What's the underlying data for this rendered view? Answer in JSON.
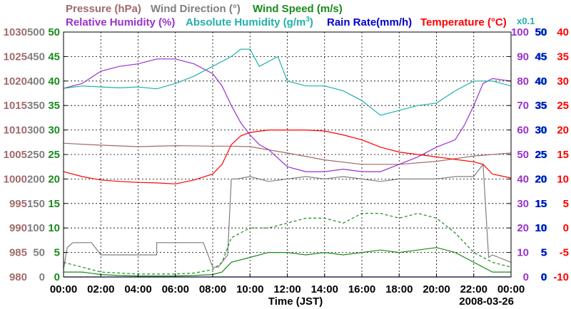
{
  "chart_data": {
    "type": "line",
    "xlabel": "Time (JST)",
    "date_label": "2008-03-26",
    "x_ticks": [
      "00:00",
      "02:00",
      "04:00",
      "06:00",
      "08:00",
      "10:00",
      "12:00",
      "14:00",
      "16:00",
      "18:00",
      "20:00",
      "22:00",
      "00:00"
    ],
    "x_range_hours": [
      0,
      24
    ],
    "grid": true,
    "left_axes": [
      {
        "name": "Pressure (hPa)",
        "color": "#a26a6a",
        "range": [
          980,
          1030
        ],
        "ticks": [
          "980",
          "985",
          "990",
          "995",
          "1000",
          "1005",
          "1010",
          "1015",
          "1020",
          "1025",
          "1030"
        ]
      },
      {
        "name": "Wind Direction (°)",
        "color": "#7f7f7f",
        "range": [
          0,
          500
        ],
        "ticks": [
          "0",
          "50",
          "100",
          "150",
          "200",
          "250",
          "300",
          "350",
          "400",
          "450",
          "500"
        ]
      },
      {
        "name": "Wind Speed (m/s)",
        "color": "#1a8a1a",
        "range": [
          0,
          50
        ],
        "ticks": [
          "0",
          "5",
          "10",
          "15",
          "20",
          "25",
          "30",
          "35",
          "40",
          "45",
          "50"
        ]
      }
    ],
    "right_axes": [
      {
        "name": "Relative Humidity (%)",
        "color": "#9932cc",
        "range": [
          0,
          100
        ],
        "ticks": [
          "0",
          "10",
          "20",
          "30",
          "40",
          "50",
          "60",
          "70",
          "80",
          "90",
          "100"
        ]
      },
      {
        "name": "Absolute Humidity (g/m3)",
        "display_unit_prefix": "Absolute Humidity (g/m",
        "display_unit_sup": "3",
        "display_unit_suffix": ")",
        "scale_note": "x0.1",
        "color": "#20b2aa",
        "range": [
          0,
          50
        ],
        "ticks": [
          "0",
          "5",
          "10",
          "15",
          "20",
          "25",
          "30",
          "35",
          "40",
          "45",
          "50"
        ]
      },
      {
        "name": "Rain Rate(mm/h)",
        "color": "#0000cc",
        "range": [
          0,
          50
        ],
        "ticks": [
          "0",
          "5",
          "10",
          "15",
          "20",
          "25",
          "30",
          "35",
          "40",
          "45",
          "50"
        ]
      },
      {
        "name": "Temperature (°C)",
        "color": "#ff0000",
        "range": [
          -10,
          40
        ],
        "ticks": [
          "-10",
          "-5",
          "0",
          "5",
          "10",
          "15",
          "20",
          "25",
          "30",
          "35",
          "40"
        ]
      }
    ],
    "series": [
      {
        "name": "Pressure (hPa)",
        "axis": "Pressure (hPa)",
        "color": "#a26a6a",
        "style": "solid",
        "x": [
          0,
          2,
          4,
          6,
          8,
          9,
          10,
          12,
          14,
          16,
          18,
          20,
          22,
          24
        ],
        "y": [
          1007.3,
          1006.9,
          1006.6,
          1006.8,
          1006.7,
          1006.7,
          1006.6,
          1005.3,
          1003.9,
          1003.0,
          1003.0,
          1003.6,
          1004.7,
          1005.3
        ]
      },
      {
        "name": "Wind Direction (°)",
        "axis": "Wind Direction (°)",
        "color": "#7f7f7f",
        "style": "solid",
        "x": [
          0,
          0.2,
          0.5,
          1,
          1.5,
          2,
          3,
          4,
          5,
          5,
          6,
          7,
          7.5,
          8,
          8.3,
          8.8,
          9,
          9.3,
          10,
          11,
          12,
          13,
          14,
          15,
          16,
          17,
          18,
          19,
          20,
          21,
          22,
          22.5,
          22.8,
          23,
          24
        ],
        "y": [
          15,
          60,
          70,
          70,
          70,
          45,
          45,
          45,
          45,
          70,
          70,
          70,
          70,
          20,
          20,
          45,
          200,
          200,
          205,
          195,
          200,
          205,
          200,
          205,
          200,
          195,
          200,
          200,
          200,
          205,
          205,
          230,
          40,
          45,
          30
        ]
      },
      {
        "name": "Wind Speed (m/s) avg",
        "axis": "Wind Speed (m/s)",
        "color": "#1a8a1a",
        "style": "solid",
        "x": [
          0,
          1,
          2,
          3,
          4,
          5,
          6,
          7,
          8,
          8.5,
          9,
          10,
          11,
          12,
          13,
          14,
          15,
          16,
          17,
          18,
          19,
          20,
          21,
          22,
          22.5,
          23,
          24
        ],
        "y": [
          1,
          1,
          0.5,
          0.3,
          0.2,
          0.2,
          0.2,
          0.3,
          0.5,
          1,
          3,
          4,
          5,
          5,
          4.5,
          5,
          4.5,
          5,
          5.5,
          5,
          5.5,
          6,
          5,
          3,
          2,
          1,
          1
        ]
      },
      {
        "name": "Wind Speed (m/s) gust",
        "axis": "Wind Speed (m/s)",
        "color": "#1a8a1a",
        "style": "dashed",
        "x": [
          0,
          1,
          2,
          3,
          4,
          5,
          6,
          7,
          8,
          8.5,
          9,
          10,
          11,
          12,
          13,
          14,
          15,
          16,
          17,
          18,
          19,
          20,
          21,
          22,
          22.5,
          23,
          24
        ],
        "y": [
          3,
          2,
          1,
          0.8,
          0.6,
          0.6,
          0.6,
          0.8,
          1.5,
          3,
          8,
          10,
          10,
          11,
          12,
          12,
          11,
          13,
          13,
          12,
          13,
          12,
          9,
          5,
          4,
          3,
          2
        ]
      },
      {
        "name": "Relative Humidity (%)",
        "axis": "Relative Humidity (%)",
        "color": "#9932cc",
        "style": "solid",
        "x": [
          0,
          1,
          2,
          3,
          4,
          5,
          6,
          7,
          8,
          8.5,
          9,
          9.5,
          10,
          10.5,
          11,
          12,
          13,
          14,
          15,
          16,
          17,
          18,
          19,
          20,
          21,
          21.5,
          22,
          22.5,
          23,
          24
        ],
        "y": [
          77,
          79,
          84,
          86,
          87,
          89,
          89,
          87,
          83,
          78,
          70,
          63,
          58,
          54,
          52,
          45,
          43,
          43,
          44,
          43,
          43,
          46,
          49,
          53,
          56,
          62,
          70,
          79,
          81,
          80
        ]
      },
      {
        "name": "Absolute Humidity (g/m3)",
        "axis": "Absolute Humidity (g/m3)",
        "color": "#20b2aa",
        "style": "solid",
        "x": [
          0,
          1,
          2,
          3,
          4,
          5,
          6,
          7,
          8,
          9,
          9.5,
          10,
          10.5,
          11,
          11.5,
          12,
          13,
          14,
          15,
          16,
          17,
          18,
          19,
          20,
          21,
          22,
          23,
          24
        ],
        "y": [
          38.5,
          39.0,
          38.8,
          38.6,
          38.8,
          38.4,
          39.5,
          41.0,
          43.0,
          45.0,
          46.5,
          46.5,
          43.0,
          44.0,
          45.0,
          40.0,
          39.0,
          39.0,
          38.0,
          36.0,
          33.0,
          34.0,
          35.0,
          35.5,
          38.0,
          40.0,
          40.0,
          39.0
        ]
      },
      {
        "name": "Rain Rate(mm/h)",
        "axis": "Rain Rate(mm/h)",
        "color": "#0000cc",
        "style": "solid",
        "x": [
          0,
          24
        ],
        "y": [
          0,
          0
        ]
      },
      {
        "name": "Temperature (°C)",
        "axis": "Temperature (°C)",
        "color": "#ff0000",
        "style": "solid",
        "x": [
          0,
          1,
          2,
          3,
          4,
          5,
          6,
          7,
          8,
          8.5,
          9,
          9.5,
          10,
          11,
          12,
          13,
          14,
          15,
          16,
          17,
          18,
          19,
          20,
          21,
          22,
          22.5,
          23,
          24
        ],
        "y": [
          11.5,
          10.5,
          9.8,
          9.5,
          9.3,
          9.2,
          9.0,
          9.8,
          11.0,
          13.0,
          17.0,
          18.8,
          19.5,
          20.0,
          20.0,
          20.0,
          19.8,
          19.0,
          18.0,
          16.5,
          15.5,
          15.0,
          14.5,
          14.0,
          13.5,
          13.0,
          11.0,
          10.2
        ]
      }
    ]
  }
}
